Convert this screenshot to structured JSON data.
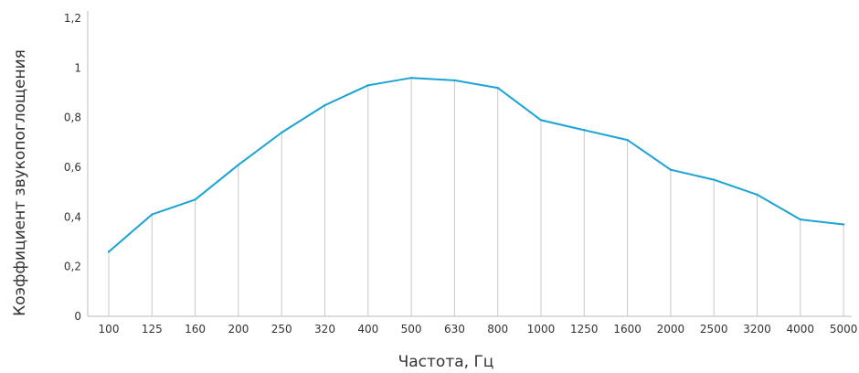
{
  "chart_data": {
    "type": "line",
    "xlabel": "Частота, Гц",
    "ylabel": "Коэффициент звукопоглощения",
    "categories": [
      "100",
      "125",
      "160",
      "200",
      "250",
      "320",
      "400",
      "500",
      "630",
      "800",
      "1000",
      "1250",
      "1600",
      "2000",
      "2500",
      "3200",
      "4000",
      "5000"
    ],
    "values": [
      0.26,
      0.41,
      0.47,
      0.61,
      0.74,
      0.85,
      0.93,
      0.96,
      0.95,
      0.92,
      0.79,
      0.75,
      0.71,
      0.59,
      0.55,
      0.49,
      0.39,
      0.37
    ],
    "ylim": [
      0,
      1.2
    ],
    "yticks": [
      0,
      0.2,
      0.4,
      0.6,
      0.8,
      1,
      1.2
    ],
    "ytick_labels": [
      "0",
      "0,2",
      "0,4",
      "0,6",
      "0,8",
      "1",
      "1,2"
    ],
    "grid": "vertical drop lines at each category",
    "line_color": "#1aa3d4",
    "dropline_color": "#c8c8c8",
    "axis_color": "#bbbbbb"
  }
}
